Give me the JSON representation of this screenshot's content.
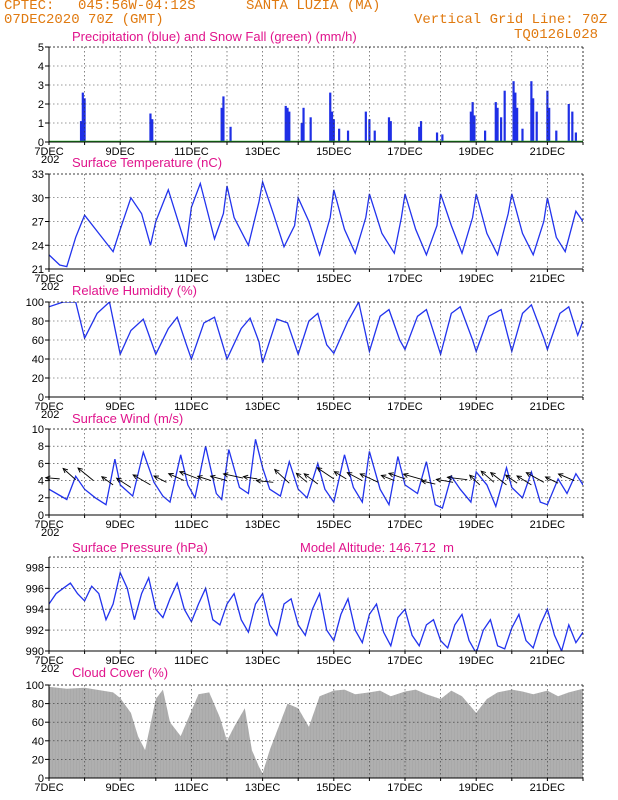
{
  "header": {
    "source": "CPTEC:",
    "coords": "045:56W-04:12S",
    "station": "SANTA LUZIA (MA)",
    "date": "07DEC2020 70Z (GMT)",
    "grid_note": "Vertical Grid Line: 70Z",
    "code": "TQ0126L028"
  },
  "x_axis": {
    "labels": [
      "7DEC",
      "9DEC",
      "11DEC",
      "13DEC",
      "15DEC",
      "17DEC",
      "19DEC",
      "21DEC"
    ],
    "day_start": 7,
    "day_end": 22,
    "year_fragment": "202"
  },
  "colors": {
    "precip": "#1f2fe6",
    "snow": "#22aa22",
    "line": "#2233ee",
    "cloud": "#a9a9a9",
    "title": "#e0148c",
    "header": "#e07a10"
  },
  "chart_data": [
    {
      "type": "bar",
      "title": "Precipitation (blue) and Snow Fall (green) (mm/h)",
      "ylim": [
        0,
        5
      ],
      "yticks": [
        0,
        1,
        2,
        3,
        4,
        5
      ],
      "grid": true,
      "series": [
        {
          "name": "Precipitation",
          "x": [
            7.9,
            7.95,
            8.0,
            9.85,
            9.9,
            11.85,
            11.9,
            12.1,
            13.65,
            13.7,
            13.75,
            14.1,
            14.15,
            14.35,
            14.9,
            14.95,
            15.0,
            15.15,
            15.4,
            15.9,
            16.0,
            16.15,
            16.55,
            16.6,
            17.4,
            17.45,
            17.9,
            18.05,
            18.85,
            18.9,
            18.95,
            19.25,
            19.55,
            19.6,
            19.7,
            19.8,
            20.05,
            20.1,
            20.15,
            20.3,
            20.55,
            20.6,
            20.7,
            21.0,
            21.05,
            21.25,
            21.6,
            21.7,
            21.8
          ],
          "values": [
            1.1,
            2.6,
            2.3,
            1.5,
            1.2,
            1.8,
            2.4,
            0.8,
            1.9,
            1.8,
            1.6,
            1.0,
            1.8,
            1.3,
            2.6,
            1.6,
            1.2,
            0.7,
            0.6,
            1.6,
            1.2,
            0.6,
            1.3,
            1.1,
            0.8,
            1.1,
            0.5,
            0.4,
            1.6,
            2.1,
            1.4,
            0.6,
            2.1,
            1.8,
            1.3,
            2.7,
            3.2,
            2.6,
            1.8,
            0.7,
            3.2,
            2.3,
            1.6,
            2.7,
            1.8,
            0.6,
            2.0,
            1.6,
            0.5
          ]
        },
        {
          "name": "Snow Fall",
          "x": [
            7,
            22
          ],
          "values": [
            0,
            0
          ]
        }
      ]
    },
    {
      "type": "line",
      "title": "Surface Temperature (nC)",
      "ylim": [
        21,
        33
      ],
      "yticks": [
        21,
        24,
        27,
        30,
        33
      ],
      "grid": true,
      "x": [
        7.0,
        7.3,
        7.5,
        7.75,
        8.0,
        8.4,
        8.8,
        9.0,
        9.3,
        9.6,
        9.85,
        10.0,
        10.35,
        10.85,
        11.0,
        11.25,
        11.65,
        11.9,
        12.0,
        12.2,
        12.6,
        12.9,
        13.0,
        13.3,
        13.6,
        13.9,
        14.0,
        14.3,
        14.6,
        14.9,
        15.0,
        15.3,
        15.6,
        15.9,
        16.0,
        16.35,
        16.7,
        16.9,
        17.0,
        17.3,
        17.6,
        17.9,
        18.0,
        18.3,
        18.6,
        18.9,
        19.0,
        19.3,
        19.6,
        19.9,
        20.0,
        20.3,
        20.6,
        20.9,
        21.0,
        21.25,
        21.5,
        21.8,
        22.0
      ],
      "y": [
        22.8,
        21.5,
        21.3,
        25.0,
        27.8,
        25.5,
        23.2,
        26.0,
        30.0,
        28.0,
        24.0,
        27.0,
        31.0,
        23.8,
        28.8,
        31.8,
        24.8,
        28.0,
        31.5,
        27.5,
        24.0,
        29.5,
        32.0,
        28.0,
        23.8,
        26.5,
        30.0,
        27.0,
        22.8,
        27.5,
        31.0,
        26.0,
        23.0,
        27.5,
        30.5,
        25.5,
        23.0,
        27.5,
        30.5,
        26.0,
        22.8,
        26.5,
        30.5,
        26.5,
        23.0,
        27.5,
        30.5,
        25.5,
        22.8,
        28.0,
        30.5,
        25.5,
        22.8,
        27.0,
        30.0,
        25.0,
        23.2,
        28.3,
        27.0
      ]
    },
    {
      "type": "line",
      "title": "Relative Humidity (%)",
      "ylim": [
        0,
        100
      ],
      "yticks": [
        0,
        20,
        40,
        60,
        80,
        100
      ],
      "grid": true,
      "x": [
        7.0,
        7.4,
        7.75,
        8.0,
        8.35,
        8.7,
        9.0,
        9.3,
        9.65,
        10.0,
        10.35,
        10.6,
        10.85,
        11.0,
        11.35,
        11.65,
        12.0,
        12.4,
        12.65,
        12.9,
        13.0,
        13.4,
        13.7,
        14.0,
        14.3,
        14.55,
        14.8,
        15.0,
        15.4,
        15.7,
        16.0,
        16.3,
        16.55,
        16.85,
        17.0,
        17.35,
        17.6,
        18.0,
        18.3,
        18.55,
        18.9,
        19.0,
        19.35,
        19.7,
        20.0,
        20.3,
        20.55,
        20.9,
        21.0,
        21.35,
        21.6,
        21.85,
        22.0
      ],
      "y": [
        95,
        100,
        100,
        62,
        88,
        100,
        45,
        70,
        82,
        45,
        72,
        84,
        56,
        40,
        78,
        84,
        40,
        72,
        83,
        58,
        36,
        82,
        78,
        45,
        80,
        88,
        55,
        46,
        80,
        100,
        48,
        85,
        92,
        60,
        50,
        85,
        92,
        45,
        88,
        95,
        60,
        48,
        85,
        92,
        48,
        88,
        97,
        62,
        50,
        88,
        95,
        65,
        80
      ]
    },
    {
      "type": "line",
      "title": "Surface Wind (m/s)",
      "ylim": [
        0,
        10
      ],
      "yticks": [
        0,
        2,
        4,
        6,
        8,
        10
      ],
      "grid": true,
      "x": [
        7.0,
        7.5,
        7.75,
        8.0,
        8.3,
        8.6,
        8.85,
        9.0,
        9.35,
        9.65,
        9.95,
        10.2,
        10.4,
        10.7,
        10.9,
        11.1,
        11.4,
        11.7,
        11.85,
        12.05,
        12.35,
        12.6,
        12.8,
        13.0,
        13.2,
        13.5,
        13.75,
        14.0,
        14.25,
        14.55,
        14.75,
        15.0,
        15.3,
        15.55,
        15.8,
        16.0,
        16.3,
        16.55,
        16.8,
        17.0,
        17.35,
        17.6,
        17.85,
        18.05,
        18.3,
        18.55,
        18.85,
        19.0,
        19.3,
        19.55,
        19.85,
        20.0,
        20.3,
        20.55,
        20.8,
        21.0,
        21.3,
        21.55,
        21.8,
        22.0
      ],
      "y": [
        3.0,
        1.8,
        4.5,
        3.0,
        2.0,
        1.2,
        6.5,
        3.5,
        2.2,
        7.3,
        3.8,
        2.2,
        1.5,
        7.0,
        3.5,
        2.0,
        8.0,
        2.5,
        1.8,
        7.6,
        3.2,
        2.5,
        8.8,
        5.5,
        3.0,
        2.2,
        6.2,
        3.0,
        2.0,
        6.0,
        3.0,
        1.5,
        7.0,
        3.2,
        1.5,
        7.4,
        3.0,
        1.2,
        6.8,
        3.5,
        2.5,
        6.2,
        1.2,
        0.8,
        4.5,
        3.0,
        1.5,
        5.0,
        3.5,
        1.0,
        5.5,
        3.2,
        2.0,
        5.0,
        1.5,
        1.2,
        4.2,
        2.5,
        4.8,
        3.5
      ]
    },
    {
      "type": "line",
      "title": "Surface Pressure (hPa)",
      "annotation": "Model Altitude: 146.712  m",
      "ylim": [
        990,
        999
      ],
      "yticks": [
        990,
        992,
        994,
        996,
        998
      ],
      "grid": true,
      "x": [
        7.0,
        7.2,
        7.4,
        7.6,
        7.8,
        8.0,
        8.2,
        8.4,
        8.6,
        8.8,
        9.0,
        9.2,
        9.4,
        9.6,
        9.8,
        10.0,
        10.2,
        10.4,
        10.6,
        10.8,
        11.0,
        11.2,
        11.4,
        11.6,
        11.8,
        12.0,
        12.2,
        12.4,
        12.6,
        12.8,
        13.0,
        13.2,
        13.4,
        13.6,
        13.8,
        14.0,
        14.2,
        14.4,
        14.6,
        14.8,
        15.0,
        15.2,
        15.4,
        15.6,
        15.8,
        16.0,
        16.2,
        16.4,
        16.6,
        16.8,
        17.0,
        17.2,
        17.4,
        17.6,
        17.8,
        18.0,
        18.2,
        18.4,
        18.6,
        18.8,
        19.0,
        19.2,
        19.4,
        19.6,
        19.8,
        20.0,
        20.2,
        20.4,
        20.6,
        20.8,
        21.0,
        21.2,
        21.4,
        21.6,
        21.8,
        22.0
      ],
      "y": [
        994.5,
        995.5,
        996.0,
        996.5,
        995.5,
        994.8,
        996.2,
        995.5,
        993.0,
        994.5,
        997.5,
        996.0,
        993.0,
        995.5,
        997.0,
        994.0,
        993.2,
        995.0,
        996.5,
        994.0,
        992.8,
        994.5,
        996.0,
        993.0,
        992.5,
        994.5,
        995.5,
        993.0,
        991.8,
        994.5,
        995.5,
        992.5,
        991.5,
        994.5,
        995.0,
        992.5,
        991.5,
        994.0,
        995.5,
        992.0,
        991.0,
        993.5,
        995.0,
        992.0,
        990.8,
        993.5,
        994.5,
        991.8,
        990.5,
        993.2,
        994.0,
        991.5,
        990.5,
        992.5,
        993.0,
        991.0,
        990.3,
        992.5,
        993.5,
        991.0,
        989.8,
        992.0,
        993.0,
        990.5,
        990.2,
        992.2,
        993.5,
        991.0,
        990.3,
        992.5,
        994.0,
        991.5,
        990.0,
        992.5,
        990.8,
        991.8
      ]
    },
    {
      "type": "area",
      "title": "Cloud Cover (%)",
      "ylim": [
        0,
        100
      ],
      "yticks": [
        0,
        20,
        40,
        60,
        80,
        100
      ],
      "grid": true,
      "x": [
        7.0,
        7.5,
        8.0,
        8.5,
        8.8,
        9.0,
        9.3,
        9.5,
        9.7,
        10.0,
        10.2,
        10.4,
        10.7,
        11.0,
        11.2,
        11.5,
        11.8,
        12.0,
        12.2,
        12.5,
        12.7,
        12.9,
        13.0,
        13.2,
        13.5,
        13.7,
        14.0,
        14.3,
        14.6,
        15.0,
        15.3,
        15.6,
        16.0,
        16.3,
        16.6,
        17.0,
        17.3,
        17.6,
        18.0,
        18.3,
        18.6,
        19.0,
        19.3,
        19.6,
        20.0,
        20.3,
        20.6,
        21.0,
        21.3,
        21.6,
        22.0
      ],
      "y": [
        98,
        96,
        97,
        94,
        92,
        86,
        70,
        45,
        30,
        85,
        95,
        60,
        45,
        72,
        90,
        92,
        65,
        40,
        55,
        75,
        30,
        12,
        5,
        30,
        60,
        80,
        75,
        55,
        88,
        94,
        95,
        90,
        92,
        94,
        88,
        93,
        95,
        90,
        85,
        94,
        88,
        70,
        85,
        92,
        95,
        93,
        90,
        94,
        88,
        92,
        96
      ]
    }
  ]
}
